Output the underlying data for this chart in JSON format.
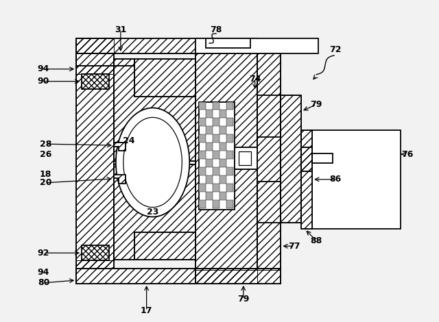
{
  "bg_color": "#f2f2f2",
  "figsize": [
    6.4,
    4.7
  ],
  "dpi": 100,
  "lw": 1.3,
  "fs": 9
}
